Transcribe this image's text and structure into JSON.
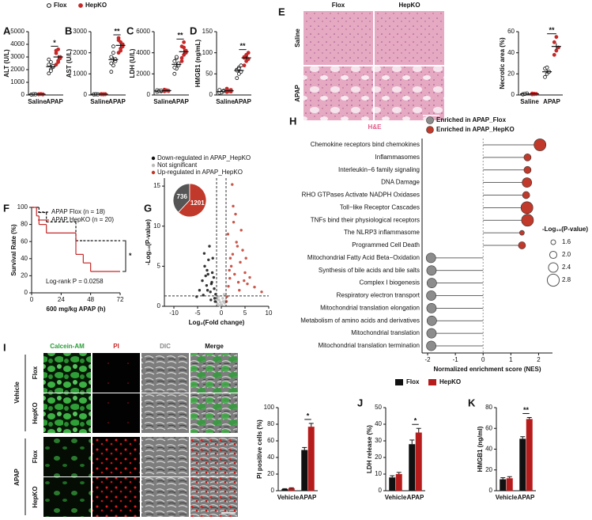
{
  "chart_data": [
    {
      "panel": "A",
      "type": "dot",
      "ylabel": "ALT (U/L)",
      "categories": [
        "Saline",
        "APAP"
      ],
      "ylim": [
        0,
        5000
      ],
      "yticks": [
        0,
        1000,
        2000,
        3000,
        4000,
        5000
      ],
      "series": [
        {
          "name": "Flox",
          "color": "#111111",
          "marker": "open",
          "values": [
            49,
            2238
          ],
          "errors": [
            7,
            130
          ],
          "points": [
            [
              30,
              50,
              60,
              40,
              70,
              45
            ],
            [
              1700,
              2000,
              2200,
              2400,
              2600,
              2300,
              2800,
              1900
            ]
          ]
        },
        {
          "name": "HepKO",
          "color": "#c62828",
          "marker": "filled",
          "values": [
            59,
            3000
          ],
          "errors": [
            6,
            150
          ],
          "points": [
            [
              50,
              70,
              40,
              60,
              80,
              55
            ],
            [
              2400,
              2700,
              3000,
              3300,
              3600,
              2900,
              3500,
              2600
            ]
          ]
        }
      ],
      "significance": [
        null,
        "*"
      ]
    },
    {
      "panel": "B",
      "type": "dot",
      "ylabel": "AST (U/L)",
      "categories": [
        "Saline",
        "APAP"
      ],
      "ylim": [
        0,
        3000
      ],
      "yticks": [
        0,
        1000,
        2000,
        3000
      ],
      "series": [
        {
          "name": "Flox",
          "color": "#111111",
          "marker": "open",
          "values": [
            30,
            1675
          ],
          "errors": [
            3,
            140
          ],
          "points": [
            [
              20,
              30,
              25,
              35,
              40,
              30
            ],
            [
              1100,
              1400,
              1600,
              1800,
              2000,
              1700,
              1500,
              2300
            ]
          ]
        },
        {
          "name": "HepKO",
          "color": "#c62828",
          "marker": "filled",
          "values": [
            36,
            2350
          ],
          "errors": [
            3,
            90
          ],
          "points": [
            [
              30,
              40,
              35,
              45,
              25,
              40
            ],
            [
              2000,
              2200,
              2400,
              2600,
              2500,
              2300,
              2700,
              2100
            ]
          ]
        }
      ],
      "significance": [
        null,
        "**"
      ]
    },
    {
      "panel": "C",
      "type": "dot",
      "ylabel": "LDH (U/L)",
      "categories": [
        "Saline",
        "APAP"
      ],
      "ylim": [
        0,
        6000
      ],
      "yticks": [
        0,
        2000,
        4000,
        6000
      ],
      "series": [
        {
          "name": "Flox",
          "color": "#111111",
          "marker": "open",
          "values": [
            383,
            2900
          ],
          "errors": [
            20,
            200
          ],
          "points": [
            [
              300,
              400,
              350,
              450,
              380,
              420
            ],
            [
              2000,
              2500,
              2800,
              3200,
              3500,
              3000,
              2600,
              3600
            ]
          ]
        },
        {
          "name": "HepKO",
          "color": "#c62828",
          "marker": "filled",
          "values": [
            417,
            4100
          ],
          "errors": [
            20,
            220
          ],
          "points": [
            [
              350,
              450,
              400,
              500,
              420,
              380
            ],
            [
              3200,
              3800,
              4200,
              4600,
              5000,
              4000,
              3500,
              4500
            ]
          ]
        }
      ],
      "significance": [
        null,
        "**"
      ]
    },
    {
      "panel": "D",
      "type": "dot",
      "ylabel": "HMGB1 (ng/mL)",
      "categories": [
        "Saline",
        "APAP"
      ],
      "ylim": [
        0,
        150
      ],
      "yticks": [
        0,
        50,
        100,
        150
      ],
      "series": [
        {
          "name": "Flox",
          "color": "#111111",
          "marker": "open",
          "values": [
            8,
            58
          ],
          "errors": [
            1,
            4
          ],
          "points": [
            [
              5,
              8,
              10,
              12,
              6,
              9
            ],
            [
              40,
              50,
              55,
              60,
              65,
              70,
              58,
              62
            ]
          ]
        },
        {
          "name": "HepKO",
          "color": "#c62828",
          "marker": "filled",
          "values": [
            10,
            88
          ],
          "errors": [
            1,
            4
          ],
          "points": [
            [
              7,
              10,
              12,
              15,
              9,
              8
            ],
            [
              70,
              80,
              85,
              90,
              95,
              100,
              88,
              92
            ]
          ]
        }
      ],
      "significance": [
        null,
        "**"
      ]
    },
    {
      "panel": "E",
      "type": "dot",
      "ylabel": "Necrotic area (%)",
      "categories": [
        "Saline",
        "APAP"
      ],
      "ylim": [
        0,
        60
      ],
      "yticks": [
        0,
        20,
        40,
        60
      ],
      "series": [
        {
          "name": "Flox",
          "color": "#111111",
          "marker": "open",
          "values": [
            1,
            22
          ],
          "errors": [
            0.2,
            2
          ],
          "points": [
            [
              0.5,
              1,
              1.5,
              0.8,
              1.2
            ],
            [
              17,
              20,
              22,
              25,
              26
            ]
          ]
        },
        {
          "name": "HepKO",
          "color": "#c62828",
          "marker": "filled",
          "values": [
            1,
            46
          ],
          "errors": [
            0.2,
            3
          ],
          "points": [
            [
              0.6,
              1.2,
              1,
              1.4,
              0.8
            ],
            [
              38,
              42,
              45,
              50,
              55
            ]
          ]
        }
      ],
      "significance": [
        null,
        "**"
      ]
    },
    {
      "panel": "F",
      "type": "line",
      "step": true,
      "ylabel": "Survival Rate (%)",
      "xlabel": "600 mg/kg APAP (h)",
      "x": [
        0,
        4,
        6,
        12,
        36,
        42,
        48,
        72
      ],
      "xlim": [
        0,
        72
      ],
      "xticks": [
        0,
        24,
        48,
        72
      ],
      "ylim": [
        0,
        100
      ],
      "yticks": [
        0,
        20,
        40,
        60,
        80,
        100
      ],
      "series": [
        {
          "name": "APAP Flox (n = 18)",
          "color": "#111111",
          "dash": true,
          "values": [
            100,
            100,
            94,
            83,
            61,
            61,
            61,
            61
          ]
        },
        {
          "name": "APAP HepKO (n = 20)",
          "color": "#c62828",
          "dash": false,
          "values": [
            100,
            90,
            80,
            70,
            45,
            35,
            25,
            25
          ]
        }
      ],
      "annotation": "Log-rank P = 0.0258",
      "significance": "*"
    },
    {
      "panel": "G",
      "type": "scatter",
      "xlabel": "Log₂(Fold change)",
      "ylabel": "-Log₁₀(P-value)",
      "xlim": [
        -12,
        10
      ],
      "xticks": [
        -10,
        -5,
        0,
        5,
        10
      ],
      "ylim": [
        0,
        16
      ],
      "yticks": [
        0,
        5,
        10,
        15
      ],
      "cutoffs_x": [
        -1,
        1
      ],
      "cutoff_y": 1.3,
      "series": [
        {
          "name": "Down-regulated in APAP_HepKO",
          "color": "#111111",
          "x": [
            -1.2,
            -1.5,
            -2,
            -2.3,
            -2.8,
            -3.1,
            -3.5,
            -4,
            -1.8,
            -2.5,
            -3,
            -1.4,
            -2.1,
            -3.8,
            -4.6,
            -5.2,
            -1.6,
            -2.7,
            -3.3,
            -2.2,
            -1.3,
            -1.9,
            -2.9,
            -3.6
          ],
          "values": [
            1.5,
            2.2,
            3,
            1.8,
            4,
            2.6,
            5,
            3.2,
            6,
            7.5,
            4.5,
            1,
            2.8,
            1.4,
            2,
            1.2,
            3.6,
            5.8,
            3.8,
            0.8,
            0.6,
            4.2,
            2,
            6.6
          ]
        },
        {
          "name": "Not significant",
          "color": "#bbbbbb",
          "x": [
            -0.8,
            -0.5,
            -0.2,
            0.1,
            0.4,
            0.7,
            -0.6,
            0.3,
            0.9,
            -0.3,
            0.6,
            -0.9
          ],
          "values": [
            0.3,
            0.8,
            0.5,
            0.2,
            0.6,
            0.4,
            1.2,
            1,
            0.7,
            0.1,
            1.5,
            0.9
          ]
        },
        {
          "name": "Up-regulated in APAP_HepKO",
          "color": "#c0392b",
          "x": [
            1.2,
            1.5,
            1.8,
            2.1,
            2.4,
            2.8,
            3.2,
            3.6,
            4,
            4.5,
            5,
            5.5,
            6,
            1.4,
            1.9,
            2.6,
            3,
            3.4,
            4.2,
            5.2,
            7,
            8.5,
            2.3,
            1.7,
            3.8,
            2.5,
            4.8,
            1.1
          ],
          "values": [
            1.2,
            2.5,
            3.5,
            5,
            6.5,
            4,
            8,
            3,
            5.5,
            7,
            4.2,
            2.8,
            3.6,
            9,
            6,
            10.5,
            11.5,
            7.5,
            9.5,
            6,
            2.4,
            1.8,
            15.2,
            4.5,
            2,
            12.5,
            3.2,
            0.6
          ]
        }
      ],
      "inset": {
        "type": "pie",
        "values": [
          736,
          1201
        ],
        "colors": [
          "#555555",
          "#c0392b"
        ]
      }
    },
    {
      "panel": "H",
      "type": "lollipop",
      "xlabel": "Normalized enrichment score (NES)",
      "xlim": [
        -2.2,
        2.5
      ],
      "xticks": [
        -2,
        -1,
        0,
        1,
        2
      ],
      "categories": [
        "Chemokine receptors bind chemokines",
        "Inflammasomes",
        "Interleukin−6 family signaling",
        "DNA Damage",
        "RHO GTPases Activate NADPH Oxidases",
        "Toll−like Receptor Cascades",
        "TNFs bind their physiological receptors",
        "The NLRP3 inflammasome",
        "Programmed Cell Death",
        "Mitochondrial Fatty Acid Beta−Oxidation",
        "Synthesis of bile acids and bile salts",
        "Complex I biogenesis",
        "Respiratory electron transport",
        "Mitochondrial translation elongation",
        "Metabolism of amino acids and derivatives",
        "Mitochondrial translation",
        "Mitochondrial translation termination"
      ],
      "values": [
        2.05,
        1.6,
        1.6,
        1.58,
        1.55,
        1.58,
        1.6,
        1.4,
        1.4,
        -1.88,
        -1.86,
        -1.85,
        -1.87,
        -1.86,
        -1.85,
        -1.86,
        -1.87
      ],
      "sizes": [
        2.8,
        2.0,
        2.0,
        2.4,
        2.0,
        2.8,
        2.8,
        1.6,
        2.0,
        2.4,
        2.4,
        2.4,
        2.4,
        2.4,
        2.4,
        2.4,
        2.4
      ],
      "size_label": "-Log₁₀(P-value)",
      "size_ticks": [
        1.6,
        {
          "value": 2,
          "label": "2.0"
        },
        2.4,
        2.8
      ],
      "groups": [
        {
          "name": "Enriched in APAP_Flox",
          "color": "#8c8c8c"
        },
        {
          "name": "Enriched in APAP_HepKO",
          "color": "#c0392b"
        }
      ]
    },
    {
      "panel": "I",
      "type": "bar",
      "ylabel": "PI positive cells (%)",
      "categories": [
        "Vehicle",
        "APAP"
      ],
      "ylim": [
        0,
        100
      ],
      "yticks": [
        0,
        20,
        40,
        60,
        80,
        100
      ],
      "series": [
        {
          "name": "Flox",
          "color": "#111111",
          "values": [
            2,
            49
          ],
          "errors": [
            0.5,
            3
          ]
        },
        {
          "name": "HepKO",
          "color": "#b71c1c",
          "values": [
            3,
            77
          ],
          "errors": [
            0.5,
            4
          ]
        }
      ],
      "significance": [
        null,
        "*"
      ]
    },
    {
      "panel": "J",
      "type": "bar",
      "ylabel": "LDH release (%)",
      "categories": [
        "Vehicle",
        "APAP"
      ],
      "ylim": [
        0,
        50
      ],
      "yticks": [
        0,
        10,
        20,
        30,
        40,
        50
      ],
      "series": [
        {
          "name": "Flox",
          "color": "#111111",
          "values": [
            8,
            28
          ],
          "errors": [
            1,
            2.5
          ]
        },
        {
          "name": "HepKO",
          "color": "#b71c1c",
          "values": [
            10,
            35
          ],
          "errors": [
            1,
            2.5
          ]
        }
      ],
      "significance": [
        null,
        "*"
      ]
    },
    {
      "panel": "K",
      "type": "bar",
      "ylabel": "HMGB1 (ng/ml)",
      "categories": [
        "Vehicle",
        "APAP"
      ],
      "ylim": [
        0,
        80
      ],
      "yticks": [
        0,
        20,
        40,
        60,
        80
      ],
      "series": [
        {
          "name": "Flox",
          "color": "#111111",
          "values": [
            11,
            50
          ],
          "errors": [
            1.5,
            2
          ]
        },
        {
          "name": "HepKO",
          "color": "#b71c1c",
          "values": [
            12,
            69
          ],
          "errors": [
            1.5,
            1.5
          ]
        }
      ],
      "significance": [
        null,
        "**"
      ]
    }
  ],
  "panel_e_images": {
    "columns": [
      "Flox",
      "HepKO"
    ],
    "rows": [
      "Saline",
      "APAP"
    ],
    "stain": "H&E"
  },
  "panel_i_images": {
    "columns": [
      "Calcein-AM",
      "PI",
      "DIC",
      "Merge"
    ],
    "groups": [
      {
        "name": "Vehicle",
        "rows": [
          "Flox",
          "HepKO"
        ]
      },
      {
        "name": "APAP",
        "rows": [
          "Flox",
          "HepKO"
        ]
      }
    ]
  }
}
